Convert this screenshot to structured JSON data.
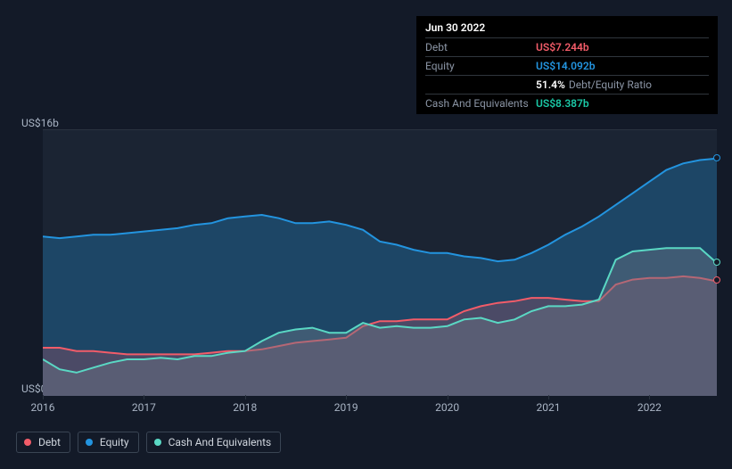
{
  "background_color": "#131a28",
  "tooltip": {
    "date": "Jun 30 2022",
    "rows": [
      {
        "label": "Debt",
        "value": "US$7.244b",
        "color": "#f25c69"
      },
      {
        "label": "Equity",
        "value": "US$14.092b",
        "color": "#2394df"
      },
      {
        "label": "",
        "value": "51.4%",
        "suffix": "Debt/Equity Ratio",
        "color": "#ffffff",
        "suffix_color": "#8b95a5"
      },
      {
        "label": "Cash And Equivalents",
        "value": "US$8.387b",
        "color": "#1bc8a6"
      }
    ]
  },
  "chart": {
    "type": "area",
    "plot_bg": "#1b2433",
    "grid_color": "#2a3340",
    "ymin": 0,
    "ymax": 16,
    "y_labels": [
      {
        "v": 16,
        "text": "US$16b"
      },
      {
        "v": 0,
        "text": "US$0"
      }
    ],
    "x_labels": [
      "2016",
      "2017",
      "2018",
      "2019",
      "2020",
      "2021",
      "2022"
    ],
    "x_label_first_offset": 0,
    "series": {
      "equity": {
        "name": "Equity",
        "stroke": "#2394df",
        "fill": "rgba(35,148,223,0.30)",
        "values": [
          9.6,
          9.5,
          9.6,
          9.7,
          9.7,
          9.8,
          9.9,
          10.0,
          10.1,
          10.3,
          10.4,
          10.7,
          10.8,
          10.9,
          10.7,
          10.4,
          10.4,
          10.5,
          10.3,
          10.0,
          9.3,
          9.1,
          8.8,
          8.6,
          8.6,
          8.4,
          8.3,
          8.1,
          8.2,
          8.6,
          9.1,
          9.7,
          10.2,
          10.8,
          11.5,
          12.2,
          12.9,
          13.6,
          14.0,
          14.2,
          14.3
        ]
      },
      "cash": {
        "name": "Cash And Equivalents",
        "stroke": "#5ad8c4",
        "fill": "rgba(106,118,134,0.45)",
        "values": [
          2.2,
          1.6,
          1.4,
          1.7,
          2.0,
          2.2,
          2.2,
          2.3,
          2.2,
          2.4,
          2.4,
          2.6,
          2.7,
          3.3,
          3.8,
          4.0,
          4.1,
          3.8,
          3.8,
          4.4,
          4.1,
          4.2,
          4.1,
          4.1,
          4.2,
          4.6,
          4.7,
          4.4,
          4.6,
          5.1,
          5.4,
          5.4,
          5.5,
          5.8,
          8.2,
          8.7,
          8.8,
          8.9,
          8.9,
          8.9,
          8.0
        ]
      },
      "debt": {
        "name": "Debt",
        "stroke": "#f25c69",
        "fill": "rgba(242,92,105,0.22)",
        "values": [
          2.9,
          2.9,
          2.7,
          2.7,
          2.6,
          2.5,
          2.5,
          2.5,
          2.5,
          2.5,
          2.6,
          2.7,
          2.7,
          2.8,
          3.0,
          3.2,
          3.3,
          3.4,
          3.5,
          4.2,
          4.5,
          4.5,
          4.6,
          4.6,
          4.6,
          5.1,
          5.4,
          5.6,
          5.7,
          5.9,
          5.9,
          5.8,
          5.7,
          5.7,
          6.7,
          7.0,
          7.1,
          7.1,
          7.2,
          7.1,
          6.9
        ]
      }
    },
    "legend": [
      {
        "key": "debt",
        "label": "Debt",
        "color": "#f25c69"
      },
      {
        "key": "equity",
        "label": "Equity",
        "color": "#2394df"
      },
      {
        "key": "cash",
        "label": "Cash And Equivalents",
        "color": "#5ad8c4"
      }
    ]
  }
}
